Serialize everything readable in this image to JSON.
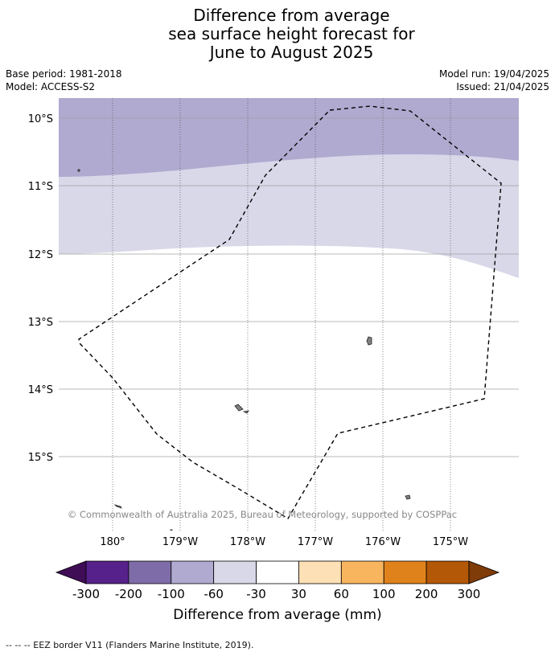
{
  "title": {
    "line1": "Difference from average",
    "line2": "sea surface height forecast for",
    "line3": "June to August 2025"
  },
  "meta": {
    "base_period": "Base period: 1981-2018",
    "model": "Model: ACCESS-S2",
    "model_run": "Model run: 19/04/2025",
    "issued": "Issued: 21/04/2025"
  },
  "map": {
    "latitude_labels": [
      "10°S",
      "11°S",
      "12°S",
      "13°S",
      "14°S",
      "15°S"
    ],
    "longitude_labels": [
      "180°",
      "179°W",
      "178°W",
      "177°W",
      "176°W",
      "175°W"
    ],
    "copyright": "© Commonwealth of Australia 2025, Bureau of Meteorology, supported by COSPPac",
    "regions": [
      {
        "name": "north band",
        "category": "-100 to -60",
        "color": "#b0aad0"
      },
      {
        "name": "middle band",
        "category": "-60 to -30",
        "color": "#d8d8e9"
      },
      {
        "name": "south area",
        "category": "-30 to 30",
        "color": "#ffffff"
      }
    ],
    "land_color": "#808080"
  },
  "colorbar": {
    "label": "Difference from average (mm)",
    "ticks": [
      "-300",
      "-200",
      "-100",
      "-60",
      "-30",
      "30",
      "60",
      "100",
      "200",
      "300"
    ],
    "colors": [
      "#3f0d56",
      "#56218a",
      "#7e6ca9",
      "#b0aad0",
      "#d8d8e9",
      "#ffffff",
      "#fde0b5",
      "#f9b55e",
      "#e0821b",
      "#b35806",
      "#7f3b08"
    ]
  },
  "footnote": "--  --  -- EEZ border V11 (Flanders Marine Institute, 2019)."
}
